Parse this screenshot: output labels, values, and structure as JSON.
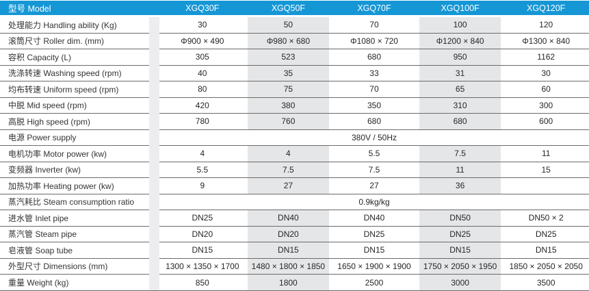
{
  "table": {
    "header": {
      "label": "型号 Model",
      "models": [
        "XGQ30F",
        "XGQ50F",
        "XGQ70F",
        "XGQ100F",
        "XGQ120F"
      ]
    },
    "rows": [
      {
        "label": "处理能力 Handling ability (Kg)",
        "values": [
          "30",
          "50",
          "70",
          "100",
          "120"
        ]
      },
      {
        "label": "滚筒尺寸 Roller dim. (mm)",
        "values": [
          "Φ900 × 490",
          "Φ980 × 680",
          "Φ1080 × 720",
          "Φ1200 × 840",
          "Φ1300 × 840"
        ]
      },
      {
        "label": "容积 Capacity (L)",
        "values": [
          "305",
          "523",
          "680",
          "950",
          "1162"
        ]
      },
      {
        "label": "洗涤转速 Washing speed (rpm)",
        "values": [
          "40",
          "35",
          "33",
          "31",
          "30"
        ]
      },
      {
        "label": "均布转速 Uniform speed (rpm)",
        "values": [
          "80",
          "75",
          "70",
          "65",
          "60"
        ]
      },
      {
        "label": "中脱 Mid speed (rpm)",
        "values": [
          "420",
          "380",
          "350",
          "310",
          "300"
        ]
      },
      {
        "label": "高脱 High speed (rpm)",
        "values": [
          "780",
          "760",
          "680",
          "680",
          "600"
        ]
      },
      {
        "label": "电源 Power supply",
        "span": "380V / 50Hz"
      },
      {
        "label": "电机功率 Motor power (kw)",
        "values": [
          "4",
          "4",
          "5.5",
          "7.5",
          "11"
        ]
      },
      {
        "label": "变频器 Inverter (kw)",
        "values": [
          "5.5",
          "7.5",
          "7.5",
          "11",
          "15"
        ]
      },
      {
        "label": "加热功率 Heating power (kw)",
        "values": [
          "9",
          "27",
          "27",
          "36",
          ""
        ]
      },
      {
        "label": "蒸汽耗比 Steam consumption ratio",
        "span": "0.9kg/kg"
      },
      {
        "label": "进水管 Inlet pipe",
        "values": [
          "DN25",
          "DN40",
          "DN40",
          "DN50",
          "DN50 × 2"
        ]
      },
      {
        "label": "蒸汽管 Steam pipe",
        "values": [
          "DN20",
          "DN20",
          "DN25",
          "DN25",
          "DN25"
        ]
      },
      {
        "label": "皂液管 Soap tube",
        "values": [
          "DN15",
          "DN15",
          "DN15",
          "DN15",
          "DN15"
        ]
      },
      {
        "label": "外型尺寸 Dimensions (mm)",
        "values": [
          "1300 × 1350 × 1700",
          "1480 × 1800 × 1850",
          "1650 × 1900 × 1900",
          "1750 × 2050 × 1950",
          "1850 × 2050 × 2050"
        ]
      },
      {
        "label": "重量 Weight (kg)",
        "values": [
          "850",
          "1800",
          "2500",
          "3000",
          "3500"
        ]
      }
    ],
    "colors": {
      "header_bg": "#1697d5",
      "header_text": "#ffffff",
      "band_bg": "#e5e6e8",
      "separator_bg": "#ededef",
      "border": "#6a6a6a"
    }
  }
}
